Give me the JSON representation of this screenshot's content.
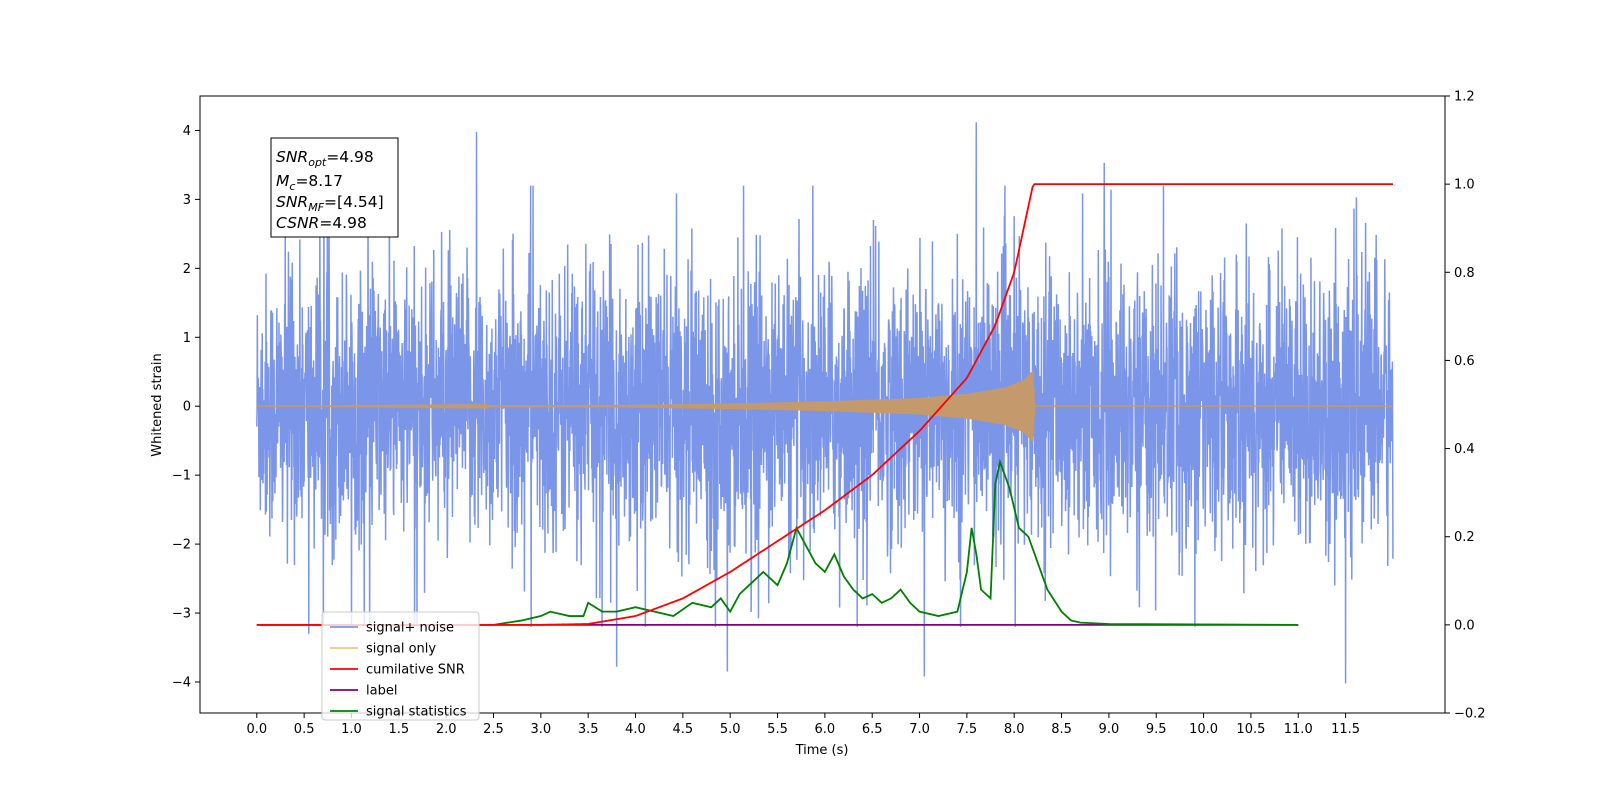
{
  "chart_data": {
    "type": "line",
    "xlabel": "Time (s)",
    "ylabel": "Whitened strain",
    "xlim": [
      -0.6,
      12.55
    ],
    "ylim": [
      -4.45,
      4.5
    ],
    "y2lim": [
      -0.2,
      1.2
    ],
    "grid": false,
    "x_ticks": [
      "0.0",
      "0.5",
      "1.0",
      "1.5",
      "2.0",
      "2.5",
      "3.0",
      "3.5",
      "4.0",
      "4.5",
      "5.0",
      "5.5",
      "6.0",
      "6.5",
      "7.0",
      "7.5",
      "8.0",
      "8.5",
      "9.0",
      "9.5",
      "10.0",
      "10.5",
      "11.0",
      "11.5"
    ],
    "y_ticks": [
      "4",
      "3",
      "2",
      "1",
      "0",
      "−1",
      "−2",
      "−3",
      "−4"
    ],
    "y2_ticks": [
      "1.2",
      "1.0",
      "0.8",
      "0.6",
      "0.4",
      "0.2",
      "0.0",
      "−0.2"
    ],
    "info_box": {
      "lines": [
        {
          "main": "SNR",
          "sub": "opt",
          "value": "=4.98"
        },
        {
          "main": "M",
          "sub": "c",
          "value": "=8.17"
        },
        {
          "main": "SNR",
          "sub": "MF",
          "value": "=[4.54]"
        },
        {
          "main": "CSNR",
          "sub": "",
          "value": "=4.98"
        }
      ]
    },
    "legend": {
      "placement": "lower-left",
      "entries": [
        {
          "label": "signal+ noise",
          "color": "#7b96e8"
        },
        {
          "label": "signal only",
          "color": "#f8c77a"
        },
        {
          "label": "cumilative SNR",
          "color": "#ff0000"
        },
        {
          "label": "label",
          "color": "#800080"
        },
        {
          "label": "signal statistics",
          "color": "#008000"
        }
      ]
    },
    "series": [
      {
        "name": "signal+ noise",
        "axis": "left",
        "color": "#7b96e8",
        "t_range": [
          0.0,
          12.0
        ],
        "envelope": "gaussian noise, roughly ±1.5 with spikes to ±4.1",
        "peaks": [
          {
            "x": 2.32,
            "y": 3.98
          },
          {
            "x": 7.6,
            "y": 4.12
          },
          {
            "x": 8.95,
            "y": 3.53
          },
          {
            "x": 4.97,
            "y": -3.85
          },
          {
            "x": 7.05,
            "y": -3.92
          },
          {
            "x": 11.5,
            "y": -4.02
          },
          {
            "x": 0.55,
            "y": -3.3
          },
          {
            "x": 3.8,
            "y": -3.78
          }
        ]
      },
      {
        "name": "signal only",
        "axis": "left",
        "color": "#f8c77a",
        "description": "chirp, amplitude ~0 until ~3.5 s, growing to ~0.52 at 8.2 s, then 0",
        "amplitude_points": [
          [
            0.0,
            0.0
          ],
          [
            4.0,
            0.02
          ],
          [
            5.0,
            0.04
          ],
          [
            6.0,
            0.07
          ],
          [
            7.0,
            0.12
          ],
          [
            7.5,
            0.18
          ],
          [
            7.9,
            0.27
          ],
          [
            8.1,
            0.38
          ],
          [
            8.2,
            0.52
          ],
          [
            8.22,
            0.0
          ],
          [
            12.0,
            0.0
          ]
        ]
      },
      {
        "name": "cumilative SNR",
        "axis": "right",
        "color": "#ff0000",
        "x": [
          0.0,
          3.0,
          3.5,
          4.0,
          4.5,
          5.0,
          5.5,
          6.0,
          6.5,
          7.0,
          7.5,
          7.8,
          8.0,
          8.1,
          8.2,
          12.0
        ],
        "y": [
          0.0,
          0.0,
          0.002,
          0.02,
          0.06,
          0.12,
          0.19,
          0.26,
          0.34,
          0.44,
          0.56,
          0.68,
          0.8,
          0.9,
          1.0,
          1.0
        ]
      },
      {
        "name": "label",
        "axis": "right",
        "color": "#800080",
        "x": [
          0.0,
          11.0
        ],
        "y": [
          0.0,
          0.0
        ]
      },
      {
        "name": "signal statistics",
        "axis": "right",
        "color": "#008000",
        "x": [
          0.0,
          2.5,
          2.8,
          3.0,
          3.1,
          3.3,
          3.45,
          3.5,
          3.65,
          3.8,
          4.0,
          4.2,
          4.4,
          4.6,
          4.8,
          4.9,
          5.0,
          5.1,
          5.2,
          5.35,
          5.5,
          5.6,
          5.7,
          5.8,
          5.9,
          6.0,
          6.1,
          6.2,
          6.3,
          6.4,
          6.5,
          6.6,
          6.7,
          6.8,
          6.9,
          7.0,
          7.2,
          7.4,
          7.5,
          7.55,
          7.6,
          7.65,
          7.75,
          7.8,
          7.85,
          7.95,
          8.05,
          8.15,
          8.25,
          8.35,
          8.5,
          8.6,
          8.7,
          9.0,
          11.0
        ],
        "y": [
          0.0,
          0.0,
          0.01,
          0.02,
          0.03,
          0.02,
          0.02,
          0.05,
          0.03,
          0.03,
          0.04,
          0.03,
          0.02,
          0.05,
          0.04,
          0.06,
          0.03,
          0.07,
          0.09,
          0.12,
          0.09,
          0.14,
          0.22,
          0.18,
          0.14,
          0.12,
          0.16,
          0.11,
          0.08,
          0.06,
          0.07,
          0.05,
          0.06,
          0.08,
          0.05,
          0.03,
          0.02,
          0.03,
          0.12,
          0.22,
          0.16,
          0.08,
          0.06,
          0.32,
          0.37,
          0.31,
          0.22,
          0.2,
          0.14,
          0.08,
          0.03,
          0.01,
          0.005,
          0.002,
          0.0
        ]
      }
    ]
  }
}
